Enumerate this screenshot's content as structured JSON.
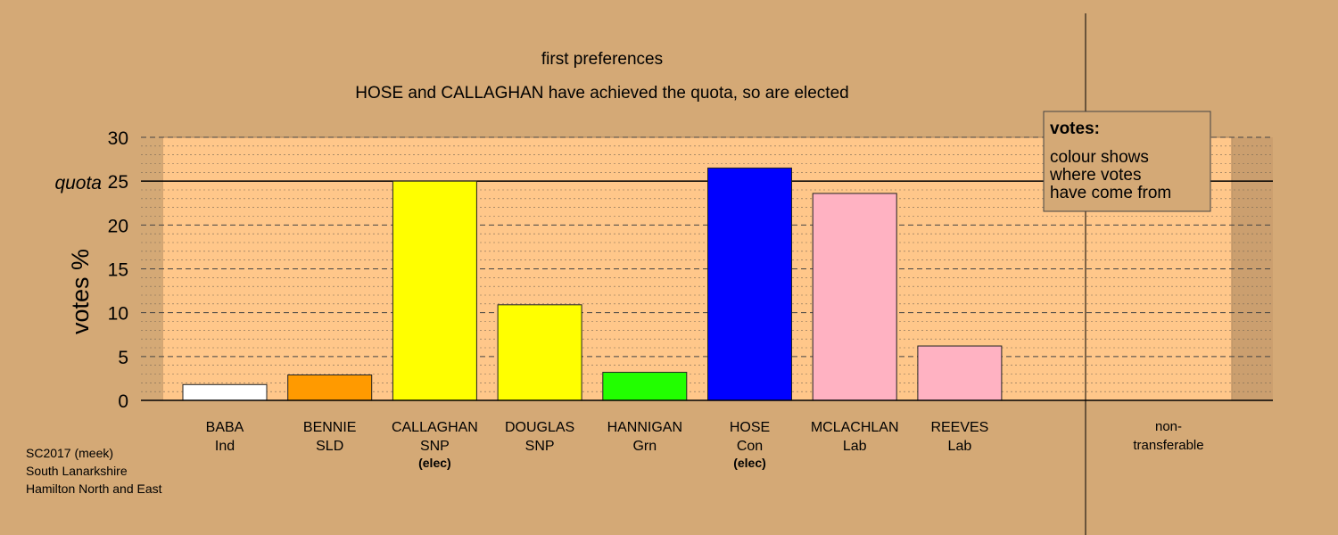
{
  "chart_data": {
    "type": "bar",
    "title": "first preferences",
    "subtitle": "HOSE and CALLAGHAN have achieved the quota, so are elected",
    "ylabel": "votes %",
    "ylim": [
      0,
      30
    ],
    "yticks": [
      0,
      5,
      10,
      15,
      20,
      25,
      30
    ],
    "quota_label": "quota",
    "quota_value": 25,
    "categories": [
      {
        "name": "BABA",
        "party": "Ind",
        "value": 1.8,
        "color": "#ffffff",
        "note": ""
      },
      {
        "name": "BENNIE",
        "party": "SLD",
        "value": 2.9,
        "color": "#ff9a00",
        "note": ""
      },
      {
        "name": "CALLAGHAN",
        "party": "SNP",
        "value": 25.0,
        "color": "#ffff00",
        "note": "(elec)"
      },
      {
        "name": "DOUGLAS",
        "party": "SNP",
        "value": 10.9,
        "color": "#ffff00",
        "note": ""
      },
      {
        "name": "HANNIGAN",
        "party": "Grn",
        "value": 3.2,
        "color": "#22ff00",
        "note": ""
      },
      {
        "name": "HOSE",
        "party": "Con",
        "value": 26.5,
        "color": "#0000ff",
        "note": "(elec)"
      },
      {
        "name": "MCLACHLAN",
        "party": "Lab",
        "value": 23.6,
        "color": "#ffb2c2",
        "note": ""
      },
      {
        "name": "REEVES",
        "party": "Lab",
        "value": 6.2,
        "color": "#ffb2c2",
        "note": ""
      }
    ],
    "nontransferable": {
      "label_line1": "non-",
      "label_line2": "transferable",
      "value": 0
    },
    "legend": {
      "heading": "votes:",
      "lines": [
        "colour shows",
        "where votes",
        "have come from"
      ],
      "placement": "top-right"
    },
    "grid": true
  },
  "footer": {
    "line1": "SC2017 (meek)",
    "line2": "South Lanarkshire",
    "line3": "Hamilton North and East"
  },
  "colors": {
    "background": "#d4a976",
    "plot_background": "#ffc78a",
    "plot_edge": "#a8825a"
  }
}
